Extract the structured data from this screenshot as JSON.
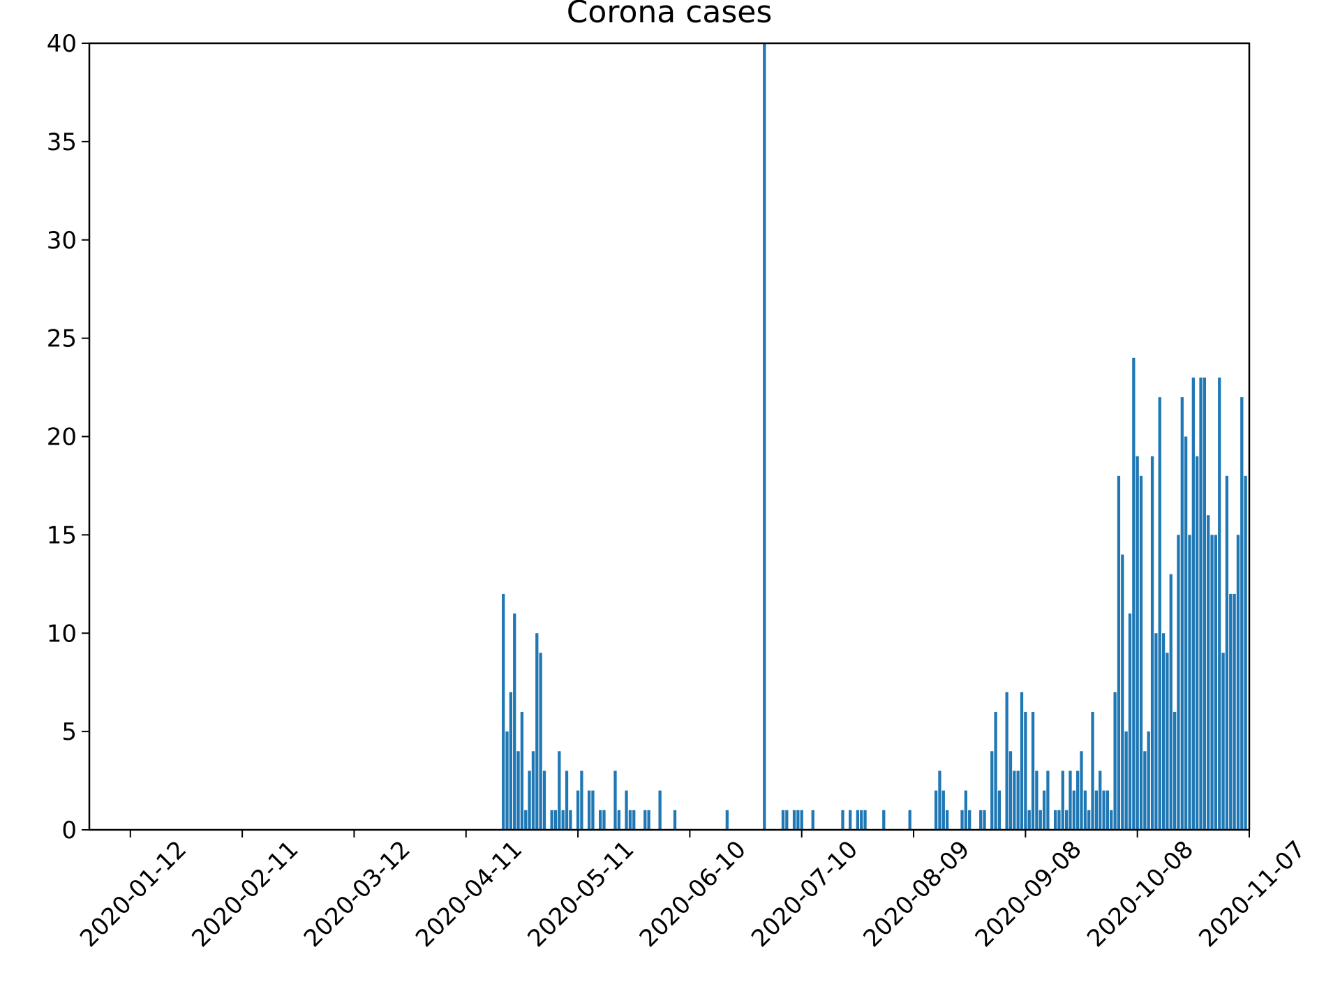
{
  "chart_data": {
    "type": "bar",
    "title": "Corona cases",
    "color": "#1f77b4",
    "x": [
      "2020-04-21",
      "2020-04-22",
      "2020-04-23",
      "2020-04-24",
      "2020-04-25",
      "2020-04-26",
      "2020-04-27",
      "2020-04-28",
      "2020-04-29",
      "2020-04-30",
      "2020-05-01",
      "2020-05-02",
      "2020-05-04",
      "2020-05-05",
      "2020-05-06",
      "2020-05-07",
      "2020-05-08",
      "2020-05-09",
      "2020-05-11",
      "2020-05-12",
      "2020-05-14",
      "2020-05-15",
      "2020-05-17",
      "2020-05-18",
      "2020-05-21",
      "2020-05-22",
      "2020-05-24",
      "2020-05-25",
      "2020-05-26",
      "2020-05-29",
      "2020-05-30",
      "2020-06-02",
      "2020-06-06",
      "2020-06-20",
      "2020-06-30",
      "2020-07-05",
      "2020-07-06",
      "2020-07-08",
      "2020-07-09",
      "2020-07-10",
      "2020-07-13",
      "2020-07-21",
      "2020-07-23",
      "2020-07-25",
      "2020-07-26",
      "2020-07-27",
      "2020-08-01",
      "2020-08-08",
      "2020-08-15",
      "2020-08-16",
      "2020-08-17",
      "2020-08-18",
      "2020-08-22",
      "2020-08-23",
      "2020-08-24",
      "2020-08-27",
      "2020-08-28",
      "2020-08-30",
      "2020-08-31",
      "2020-09-01",
      "2020-09-03",
      "2020-09-04",
      "2020-09-05",
      "2020-09-06",
      "2020-09-07",
      "2020-09-08",
      "2020-09-09",
      "2020-09-10",
      "2020-09-11",
      "2020-09-12",
      "2020-09-13",
      "2020-09-14",
      "2020-09-16",
      "2020-09-17",
      "2020-09-18",
      "2020-09-19",
      "2020-09-20",
      "2020-09-21",
      "2020-09-22",
      "2020-09-23",
      "2020-09-24",
      "2020-09-25",
      "2020-09-26",
      "2020-09-27",
      "2020-09-28",
      "2020-09-29",
      "2020-09-30",
      "2020-10-01",
      "2020-10-02",
      "2020-10-03",
      "2020-10-04",
      "2020-10-05",
      "2020-10-06",
      "2020-10-07",
      "2020-10-08",
      "2020-10-09",
      "2020-10-10",
      "2020-10-11",
      "2020-10-12",
      "2020-10-13",
      "2020-10-14",
      "2020-10-15",
      "2020-10-16",
      "2020-10-17",
      "2020-10-18",
      "2020-10-19",
      "2020-10-20",
      "2020-10-21",
      "2020-10-22",
      "2020-10-23",
      "2020-10-24",
      "2020-10-25",
      "2020-10-26",
      "2020-10-27",
      "2020-10-28",
      "2020-10-29",
      "2020-10-30",
      "2020-10-31",
      "2020-11-01",
      "2020-11-02",
      "2020-11-03",
      "2020-11-04",
      "2020-11-05",
      "2020-11-06"
    ],
    "values": [
      12,
      5,
      7,
      11,
      4,
      6,
      1,
      3,
      4,
      10,
      9,
      3,
      1,
      1,
      4,
      1,
      3,
      1,
      2,
      3,
      2,
      2,
      1,
      1,
      3,
      1,
      2,
      1,
      1,
      1,
      1,
      2,
      1,
      1,
      40,
      1,
      1,
      1,
      1,
      1,
      1,
      1,
      1,
      1,
      1,
      1,
      1,
      1,
      2,
      3,
      2,
      1,
      1,
      2,
      1,
      1,
      1,
      4,
      6,
      2,
      7,
      4,
      3,
      3,
      7,
      6,
      1,
      6,
      3,
      1,
      2,
      3,
      1,
      1,
      3,
      1,
      3,
      2,
      3,
      4,
      2,
      1,
      6,
      2,
      3,
      2,
      2,
      1,
      7,
      18,
      14,
      5,
      11,
      24,
      19,
      18,
      4,
      5,
      19,
      10,
      22,
      10,
      9,
      13,
      6,
      15,
      22,
      20,
      15,
      23,
      19,
      23,
      23,
      16,
      15,
      15,
      23,
      9,
      18,
      12,
      12,
      15,
      22,
      18
    ],
    "xlim": [
      "2020-01-01",
      "2020-11-07"
    ],
    "xticks": [
      "2020-01-12",
      "2020-02-11",
      "2020-03-12",
      "2020-04-11",
      "2020-05-11",
      "2020-06-10",
      "2020-07-10",
      "2020-08-09",
      "2020-09-08",
      "2020-10-08",
      "2020-11-07"
    ],
    "ylim": [
      0,
      40
    ],
    "yticks": [
      0,
      5,
      10,
      15,
      20,
      25,
      30,
      35,
      40
    ]
  }
}
